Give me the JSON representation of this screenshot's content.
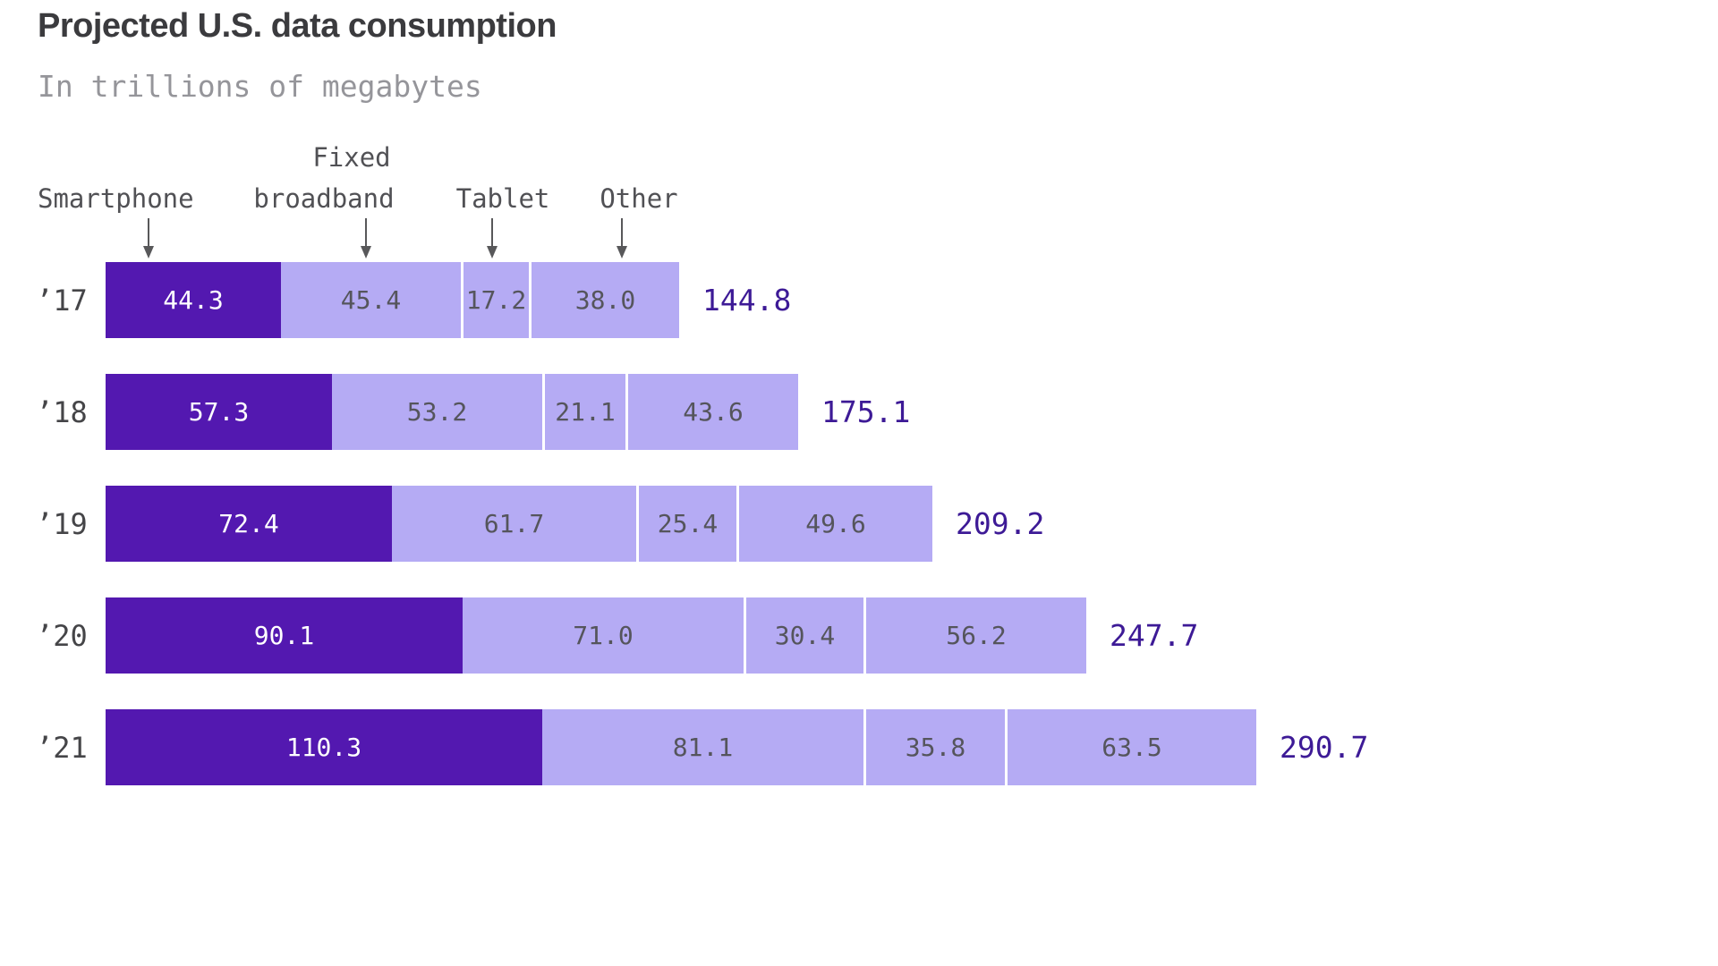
{
  "title": "Projected U.S. data consumption",
  "subtitle": "In trillions of megabytes",
  "column_headers": {
    "smartphone": "Smartphone",
    "fixed_line1": "Fixed",
    "fixed_line2": "broadband",
    "tablet": "Tablet",
    "other": "Other"
  },
  "colors": {
    "smartphone_bar": "#5318b0",
    "other_bars": "#b5abf4",
    "total_label": "#3d1a96",
    "segment_text_light": "#55555c",
    "segment_text_dark": "#ffffff",
    "arrow": "#58585a"
  },
  "chart_data": {
    "type": "bar",
    "orientation": "horizontal",
    "stacked": true,
    "title": "Projected U.S. data consumption",
    "subtitle": "In trillions of megabytes",
    "unit": "trillions of megabytes",
    "categories": [
      "’17",
      "’18",
      "’19",
      "’20",
      "’21"
    ],
    "series": [
      {
        "name": "Smartphone",
        "values": [
          44.3,
          57.3,
          72.4,
          90.1,
          110.3
        ]
      },
      {
        "name": "Fixed broadband",
        "values": [
          45.4,
          53.2,
          61.7,
          71.0,
          81.1
        ]
      },
      {
        "name": "Tablet",
        "values": [
          17.2,
          21.1,
          25.4,
          30.4,
          35.8
        ]
      },
      {
        "name": "Other",
        "values": [
          38.0,
          43.6,
          49.6,
          56.2,
          63.5
        ]
      }
    ],
    "totals": [
      144.8,
      175.1,
      209.2,
      247.7,
      290.7
    ],
    "xlim": [
      0,
      290.7
    ],
    "grid": false,
    "legend_position": "top-with-arrows",
    "value_labels": "inside-segments",
    "total_labels": "right-of-bars"
  }
}
